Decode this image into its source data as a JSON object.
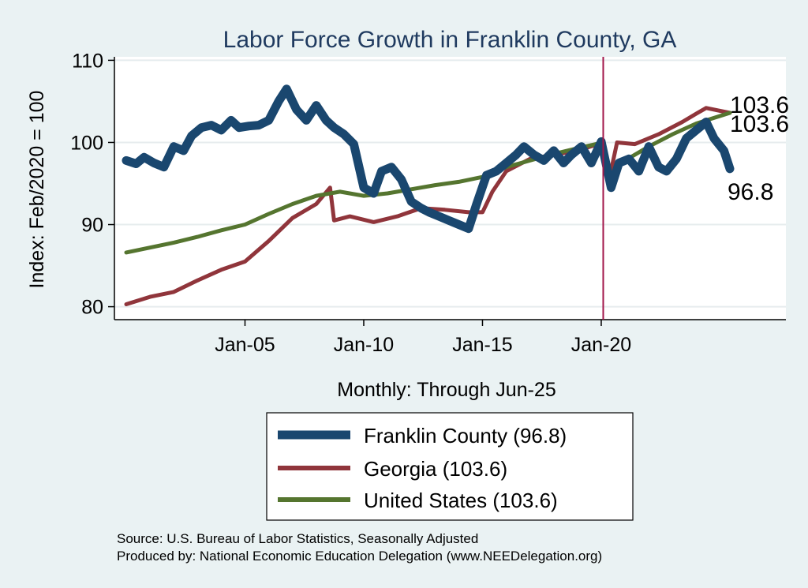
{
  "chart_data": {
    "type": "line",
    "title": "Labor Force Growth in Franklin  County, GA",
    "xlabel": "Monthly: Through Jun-25",
    "ylabel": "Index: Feb/2020 = 100",
    "x_ticks": [
      "Jan-05",
      "Jan-10",
      "Jan-15",
      "Jan-20"
    ],
    "y_ticks": [
      80,
      90,
      100,
      110
    ],
    "ylim": [
      79,
      111
    ],
    "xlim": [
      "2000-01",
      "2025-06"
    ],
    "reference_line": "2020-02",
    "grid": true,
    "legend_position": "bottom",
    "end_labels": [
      "103.6",
      "103.6",
      "96.8"
    ],
    "legend": [
      "Franklin  County (96.8)",
      "Georgia (103.6)",
      "United States (103.6)"
    ],
    "series": [
      {
        "name": "Franklin  County",
        "color": "#1a476f",
        "points": [
          [
            "2000-01",
            97.8
          ],
          [
            "2000-06",
            97.4
          ],
          [
            "2000-10",
            98.2
          ],
          [
            "2001-03",
            97.5
          ],
          [
            "2001-08",
            97.0
          ],
          [
            "2002-01",
            99.5
          ],
          [
            "2002-06",
            99.0
          ],
          [
            "2002-10",
            100.8
          ],
          [
            "2003-03",
            101.8
          ],
          [
            "2003-08",
            102.1
          ],
          [
            "2004-01",
            101.5
          ],
          [
            "2004-06",
            102.7
          ],
          [
            "2004-10",
            101.8
          ],
          [
            "2005-03",
            102.0
          ],
          [
            "2005-08",
            102.1
          ],
          [
            "2006-01",
            102.7
          ],
          [
            "2006-06",
            105.0
          ],
          [
            "2006-10",
            106.5
          ],
          [
            "2007-03",
            104.0
          ],
          [
            "2007-08",
            102.7
          ],
          [
            "2008-01",
            104.5
          ],
          [
            "2008-06",
            102.7
          ],
          [
            "2008-10",
            101.8
          ],
          [
            "2009-03",
            101.0
          ],
          [
            "2009-08",
            99.8
          ],
          [
            "2010-01",
            94.5
          ],
          [
            "2010-06",
            93.8
          ],
          [
            "2010-10",
            96.5
          ],
          [
            "2011-03",
            97.0
          ],
          [
            "2011-08",
            95.5
          ],
          [
            "2012-01",
            92.8
          ],
          [
            "2012-06",
            92.0
          ],
          [
            "2012-10",
            91.5
          ],
          [
            "2013-03",
            91.0
          ],
          [
            "2013-08",
            90.5
          ],
          [
            "2014-01",
            90.0
          ],
          [
            "2014-06",
            89.5
          ],
          [
            "2014-10",
            92.5
          ],
          [
            "2015-03",
            96.0
          ],
          [
            "2015-08",
            96.5
          ],
          [
            "2016-01",
            97.5
          ],
          [
            "2016-06",
            98.5
          ],
          [
            "2016-10",
            99.5
          ],
          [
            "2017-03",
            98.5
          ],
          [
            "2017-08",
            97.8
          ],
          [
            "2018-01",
            99.0
          ],
          [
            "2018-06",
            97.5
          ],
          [
            "2018-10",
            98.5
          ],
          [
            "2019-03",
            99.5
          ],
          [
            "2019-08",
            97.5
          ],
          [
            "2020-01",
            100.1
          ],
          [
            "2020-06",
            94.5
          ],
          [
            "2020-10",
            97.5
          ],
          [
            "2021-03",
            98.0
          ],
          [
            "2021-08",
            96.5
          ],
          [
            "2022-01",
            99.5
          ],
          [
            "2022-06",
            97.0
          ],
          [
            "2022-10",
            96.5
          ],
          [
            "2023-03",
            98.0
          ],
          [
            "2023-08",
            100.5
          ],
          [
            "2024-01",
            101.5
          ],
          [
            "2024-06",
            102.5
          ],
          [
            "2024-10",
            100.5
          ],
          [
            "2025-03",
            99.0
          ],
          [
            "2025-06",
            96.8
          ]
        ]
      },
      {
        "name": "Georgia",
        "color": "#90353b",
        "points": [
          [
            "2000-01",
            80.3
          ],
          [
            "2001-01",
            81.2
          ],
          [
            "2002-01",
            81.8
          ],
          [
            "2003-01",
            83.2
          ],
          [
            "2004-01",
            84.5
          ],
          [
            "2005-01",
            85.5
          ],
          [
            "2006-01",
            88.0
          ],
          [
            "2007-01",
            90.8
          ],
          [
            "2008-01",
            92.5
          ],
          [
            "2008-08",
            94.5
          ],
          [
            "2008-10",
            90.5
          ],
          [
            "2009-06",
            91.0
          ],
          [
            "2010-06",
            90.3
          ],
          [
            "2011-06",
            91.0
          ],
          [
            "2012-06",
            92.0
          ],
          [
            "2013-06",
            91.8
          ],
          [
            "2014-06",
            91.5
          ],
          [
            "2015-01",
            91.5
          ],
          [
            "2015-06",
            94.0
          ],
          [
            "2016-01",
            96.5
          ],
          [
            "2017-01",
            98.0
          ],
          [
            "2018-01",
            98.5
          ],
          [
            "2019-01",
            99.0
          ],
          [
            "2020-02",
            100.0
          ],
          [
            "2020-05",
            95.5
          ],
          [
            "2020-09",
            100.0
          ],
          [
            "2021-06",
            99.8
          ],
          [
            "2022-06",
            101.0
          ],
          [
            "2023-06",
            102.5
          ],
          [
            "2024-01",
            103.5
          ],
          [
            "2024-06",
            104.2
          ],
          [
            "2025-06",
            103.6
          ]
        ]
      },
      {
        "name": "United States",
        "color": "#55752f",
        "points": [
          [
            "2000-01",
            86.6
          ],
          [
            "2001-01",
            87.2
          ],
          [
            "2002-01",
            87.8
          ],
          [
            "2003-01",
            88.5
          ],
          [
            "2004-01",
            89.3
          ],
          [
            "2005-01",
            90.0
          ],
          [
            "2006-01",
            91.3
          ],
          [
            "2007-01",
            92.5
          ],
          [
            "2008-01",
            93.5
          ],
          [
            "2009-01",
            94.0
          ],
          [
            "2010-01",
            93.5
          ],
          [
            "2011-01",
            93.8
          ],
          [
            "2012-01",
            94.3
          ],
          [
            "2013-01",
            94.8
          ],
          [
            "2014-01",
            95.2
          ],
          [
            "2015-01",
            95.8
          ],
          [
            "2016-01",
            97.0
          ],
          [
            "2017-01",
            97.8
          ],
          [
            "2018-01",
            98.6
          ],
          [
            "2019-01",
            99.3
          ],
          [
            "2020-02",
            100.0
          ],
          [
            "2020-04",
            95.5
          ],
          [
            "2021-01",
            97.8
          ],
          [
            "2022-01",
            99.5
          ],
          [
            "2023-01",
            101.0
          ],
          [
            "2024-01",
            102.3
          ],
          [
            "2025-06",
            103.6
          ]
        ]
      }
    ]
  },
  "notes": {
    "source": "Source: U.S. Bureau of Labor Statistics, Seasonally Adjusted",
    "producer": "Produced by: National Economic Education Delegation (www.NEEDelegation.org)"
  }
}
